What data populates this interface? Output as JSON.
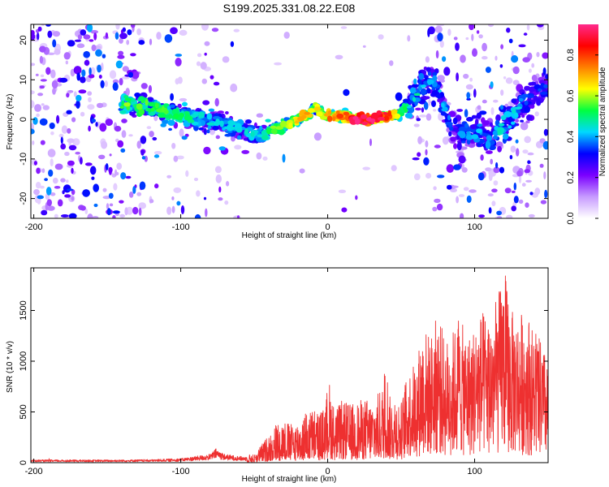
{
  "title": "S199.2025.331.08.22.E08",
  "chart_data": [
    {
      "type": "heatmap",
      "xlabel": "Height of straight line (km)",
      "ylabel": "Frequency (Hz)",
      "xlim": [
        -202,
        150
      ],
      "ylim": [
        -25,
        24
      ],
      "xticks": [
        -200,
        -100,
        0,
        100
      ],
      "xtick_labels": [
        "-200",
        "-100",
        "0",
        "100"
      ],
      "yticks": [
        -20,
        -10,
        0,
        10,
        20
      ],
      "ytick_labels": [
        "-20",
        "-10",
        "0",
        "10",
        "20"
      ],
      "colorbar": {
        "label": "Normalized spectral amplitude",
        "range": [
          0,
          0.95
        ],
        "ticks": [
          0,
          0.2,
          0.4,
          0.6,
          0.8
        ],
        "tick_labels": [
          "0.0",
          "0.2",
          "0.4",
          "0.6",
          "0.8"
        ],
        "colors": [
          "#ffffff",
          "#c79bff",
          "#7a00ff",
          "#0000ff",
          "#00d8ff",
          "#00ff40",
          "#ffff00",
          "#ff8000",
          "#ff0000",
          "#ff2a8c"
        ]
      },
      "ridge": {
        "x": [
          -202,
          -130,
          -110,
          -90,
          -70,
          -55,
          -45,
          -35,
          -25,
          -15,
          -8,
          -3,
          0,
          10,
          20,
          30,
          40,
          47,
          55,
          62,
          68,
          75,
          82,
          90,
          100,
          110,
          120,
          130,
          140,
          150
        ],
        "y": [
          0,
          4,
          2,
          0,
          -1,
          -3,
          -4,
          -2,
          -1,
          1,
          3,
          1,
          1,
          1,
          0,
          0,
          1,
          1,
          4,
          7,
          10,
          8,
          0,
          -4,
          -3,
          -5,
          -2,
          3,
          6,
          9
        ],
        "amplitude": [
          0.25,
          0.55,
          0.5,
          0.45,
          0.4,
          0.4,
          0.42,
          0.55,
          0.6,
          0.65,
          0.6,
          0.55,
          0.7,
          0.75,
          0.85,
          0.85,
          0.8,
          0.6,
          0.45,
          0.45,
          0.4,
          0.4,
          0.35,
          0.35,
          0.4,
          0.35,
          0.45,
          0.4,
          0.35,
          0.35
        ]
      }
    },
    {
      "type": "line",
      "xlabel": "Height of straight line (km)",
      "ylabel": "SNR (10 * v/v)",
      "xlim": [
        -202,
        150
      ],
      "ylim": [
        0,
        1920
      ],
      "xticks": [
        -200,
        -100,
        0,
        100
      ],
      "xtick_labels": [
        "-200",
        "-100",
        "0",
        "100"
      ],
      "yticks": [
        0,
        500,
        1000,
        1500
      ],
      "ytick_labels": [
        "0",
        "500",
        "1000",
        "1500"
      ],
      "line_color": "#ee3030",
      "envelope": {
        "x": [
          -202,
          -150,
          -120,
          -100,
          -90,
          -80,
          -76,
          -70,
          -60,
          -50,
          -40,
          -35,
          -30,
          -25,
          -20,
          -15,
          -10,
          -5,
          -1,
          0,
          5,
          10,
          15,
          20,
          25,
          30,
          35,
          38,
          40,
          42,
          45,
          50,
          55,
          60,
          65,
          70,
          75,
          80,
          85,
          90,
          95,
          100,
          105,
          110,
          115,
          120,
          125,
          130,
          135,
          140,
          145,
          150
        ],
        "y": [
          40,
          40,
          45,
          60,
          90,
          120,
          200,
          120,
          90,
          80,
          280,
          400,
          430,
          380,
          420,
          480,
          550,
          500,
          600,
          900,
          520,
          620,
          580,
          600,
          640,
          620,
          700,
          800,
          1040,
          650,
          720,
          600,
          900,
          1000,
          1350,
          1250,
          1500,
          1200,
          1300,
          1420,
          1250,
          1350,
          1500,
          1450,
          1600,
          1920,
          1500,
          1450,
          1550,
          1300,
          1200,
          1000
        ]
      }
    }
  ]
}
